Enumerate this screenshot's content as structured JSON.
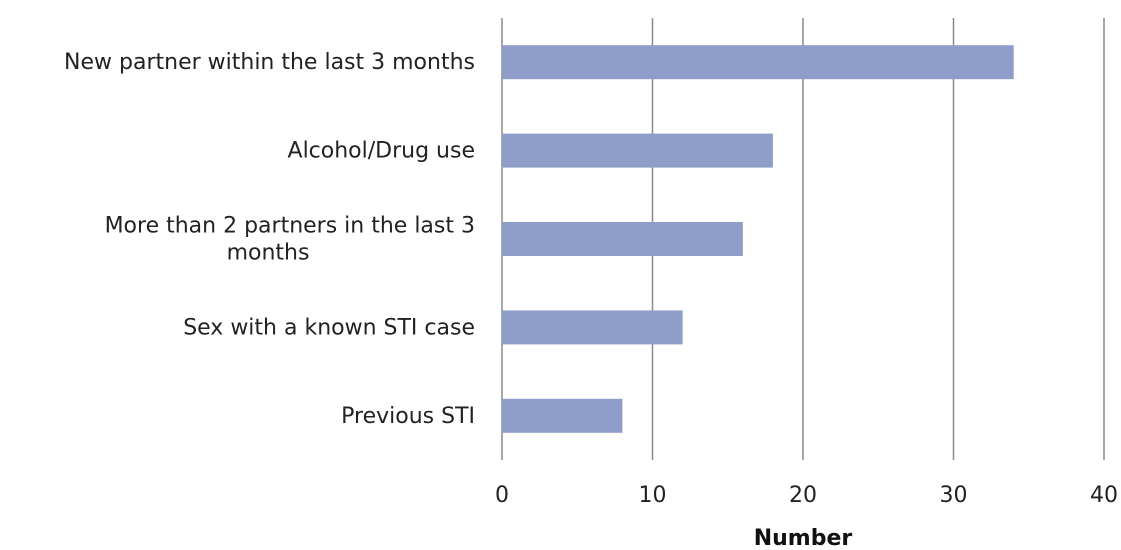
{
  "chart_data": {
    "type": "bar",
    "orientation": "horizontal",
    "title": "",
    "xlabel": "Number",
    "ylabel": "",
    "categories": [
      "New partner within the last 3 months",
      "Alcohol/Drug use",
      "More than 2 partners in the last 3 months",
      "Sex with a known STI case",
      "Previous STI"
    ],
    "series": [
      {
        "values": [
          34,
          18,
          16,
          12,
          8
        ]
      }
    ],
    "xlim": [
      0,
      40
    ],
    "xticks": [
      "0",
      "10",
      "20",
      "30",
      "40"
    ],
    "grid": "vertical",
    "bar_color": "#8f9dc9"
  }
}
